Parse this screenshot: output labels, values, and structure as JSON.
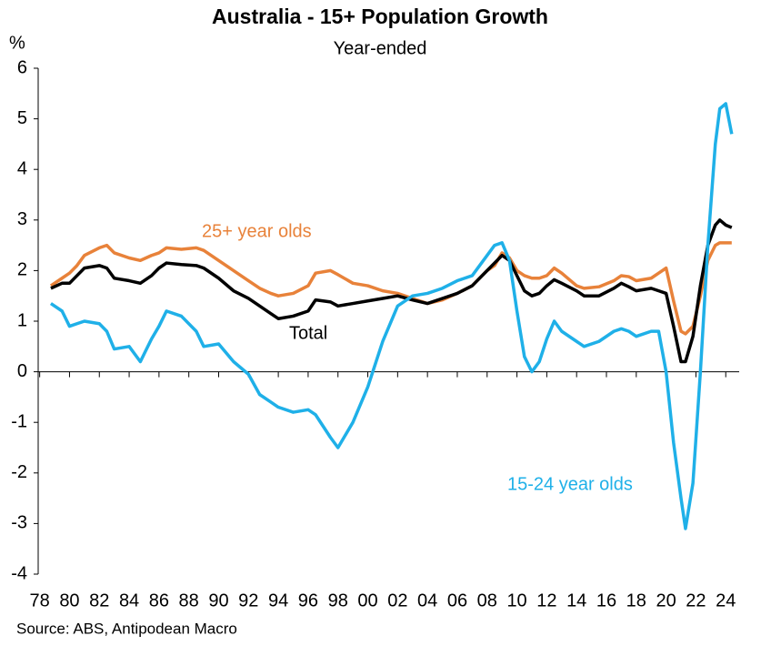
{
  "chart_data": {
    "type": "line",
    "title": "Australia - 15+ Population Growth",
    "subtitle": "Year-ended",
    "y_unit": "%",
    "source": "Source: ABS, Antipodean Macro",
    "x": [
      1978.75,
      1979.5,
      1980,
      1980.5,
      1981,
      1982,
      1982.5,
      1983,
      1984,
      1984.75,
      1985.5,
      1986,
      1986.5,
      1987.5,
      1988.5,
      1989,
      1990,
      1991,
      1992,
      1992.75,
      1993.5,
      1994,
      1995,
      1996,
      1996.5,
      1997.5,
      1998,
      1999,
      2000,
      2001,
      2002,
      2003,
      2004,
      2005,
      2006,
      2007,
      2008,
      2008.5,
      2009,
      2009.5,
      2010,
      2010.5,
      2011,
      2011.5,
      2012,
      2012.5,
      2013,
      2014,
      2014.5,
      2015.5,
      2016.5,
      2017,
      2017.5,
      2018,
      2019,
      2019.5,
      2020,
      2020.5,
      2021,
      2021.3,
      2021.8,
      2022.3,
      2022.8,
      2023.3,
      2023.6,
      2024,
      2024.4
    ],
    "series": [
      {
        "name": "25+ year olds",
        "color": "#e8823a",
        "values": [
          1.7,
          1.85,
          1.95,
          2.1,
          2.3,
          2.45,
          2.5,
          2.35,
          2.25,
          2.2,
          2.3,
          2.35,
          2.45,
          2.42,
          2.45,
          2.4,
          2.2,
          2.0,
          1.8,
          1.65,
          1.55,
          1.5,
          1.55,
          1.7,
          1.95,
          2.0,
          1.92,
          1.75,
          1.7,
          1.6,
          1.55,
          1.45,
          1.35,
          1.42,
          1.55,
          1.7,
          2.0,
          2.1,
          2.35,
          2.25,
          2.0,
          1.9,
          1.85,
          1.85,
          1.9,
          2.05,
          1.95,
          1.7,
          1.65,
          1.68,
          1.8,
          1.9,
          1.88,
          1.8,
          1.85,
          1.95,
          2.05,
          1.4,
          0.8,
          0.75,
          0.9,
          1.5,
          2.2,
          2.5,
          2.55,
          2.55,
          2.55
        ]
      },
      {
        "name": "Total",
        "color": "#000000",
        "values": [
          1.65,
          1.75,
          1.75,
          1.9,
          2.05,
          2.1,
          2.05,
          1.85,
          1.8,
          1.75,
          1.9,
          2.05,
          2.15,
          2.12,
          2.1,
          2.05,
          1.85,
          1.6,
          1.45,
          1.3,
          1.15,
          1.05,
          1.1,
          1.2,
          1.42,
          1.38,
          1.3,
          1.35,
          1.4,
          1.45,
          1.5,
          1.42,
          1.35,
          1.45,
          1.55,
          1.7,
          2.0,
          2.15,
          2.3,
          2.2,
          1.9,
          1.6,
          1.5,
          1.55,
          1.7,
          1.82,
          1.75,
          1.6,
          1.5,
          1.5,
          1.65,
          1.75,
          1.68,
          1.6,
          1.65,
          1.6,
          1.55,
          0.9,
          0.2,
          0.2,
          0.7,
          1.7,
          2.5,
          2.9,
          3.0,
          2.9,
          2.85
        ]
      },
      {
        "name": "15-24 year olds",
        "color": "#1fb0e8",
        "values": [
          1.35,
          1.2,
          0.9,
          0.95,
          1.0,
          0.95,
          0.8,
          0.45,
          0.5,
          0.2,
          0.65,
          0.9,
          1.2,
          1.1,
          0.8,
          0.5,
          0.55,
          0.2,
          -0.05,
          -0.45,
          -0.6,
          -0.7,
          -0.8,
          -0.75,
          -0.85,
          -1.3,
          -1.5,
          -1.0,
          -0.3,
          0.6,
          1.3,
          1.5,
          1.55,
          1.65,
          1.8,
          1.9,
          2.3,
          2.5,
          2.55,
          2.2,
          1.2,
          0.3,
          0.0,
          0.2,
          0.65,
          1.0,
          0.8,
          0.6,
          0.5,
          0.6,
          0.8,
          0.85,
          0.8,
          0.7,
          0.8,
          0.8,
          0.0,
          -1.4,
          -2.5,
          -3.1,
          -2.2,
          0.0,
          2.5,
          4.5,
          5.2,
          5.3,
          4.7
        ]
      }
    ],
    "xlim": [
      1977.9,
      2024.9
    ],
    "xticks": [
      {
        "value": 1978,
        "label": "78"
      },
      {
        "value": 1980,
        "label": "80"
      },
      {
        "value": 1982,
        "label": "82"
      },
      {
        "value": 1984,
        "label": "84"
      },
      {
        "value": 1986,
        "label": "86"
      },
      {
        "value": 1988,
        "label": "88"
      },
      {
        "value": 1990,
        "label": "90"
      },
      {
        "value": 1992,
        "label": "92"
      },
      {
        "value": 1994,
        "label": "94"
      },
      {
        "value": 1996,
        "label": "96"
      },
      {
        "value": 1998,
        "label": "98"
      },
      {
        "value": 2000,
        "label": "00"
      },
      {
        "value": 2002,
        "label": "02"
      },
      {
        "value": 2004,
        "label": "04"
      },
      {
        "value": 2006,
        "label": "06"
      },
      {
        "value": 2008,
        "label": "08"
      },
      {
        "value": 2010,
        "label": "10"
      },
      {
        "value": 2012,
        "label": "12"
      },
      {
        "value": 2014,
        "label": "14"
      },
      {
        "value": 2016,
        "label": "16"
      },
      {
        "value": 2018,
        "label": "18"
      },
      {
        "value": 2020,
        "label": "20"
      },
      {
        "value": 2022,
        "label": "22"
      },
      {
        "value": 2024,
        "label": "24"
      }
    ],
    "ylim": [
      -4,
      6
    ],
    "yticks": [
      -4,
      -3,
      -2,
      -1,
      0,
      1,
      2,
      3,
      4,
      5,
      6
    ]
  }
}
